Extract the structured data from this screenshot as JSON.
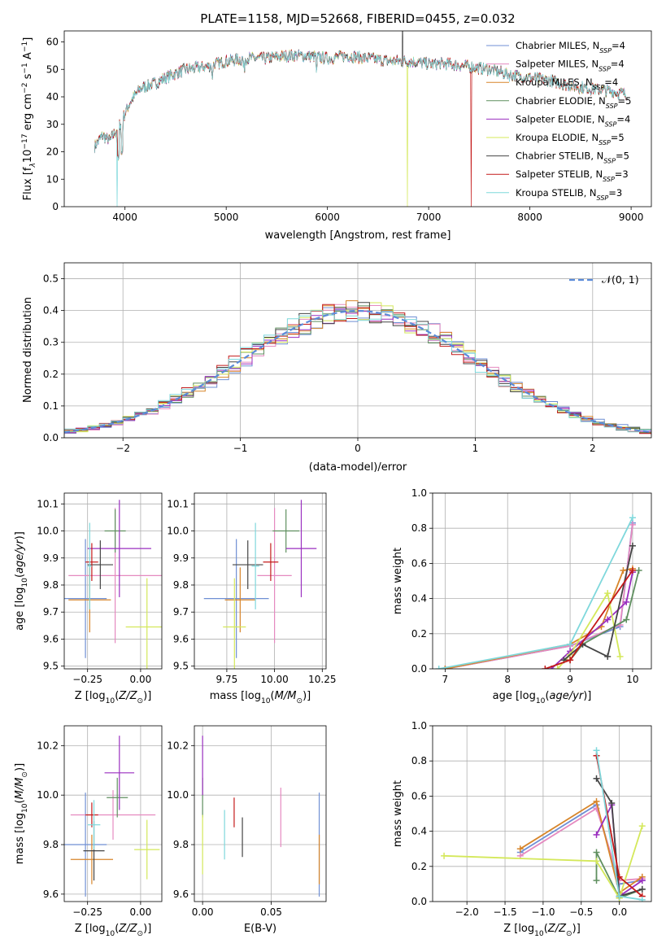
{
  "figure": {
    "title": "PLATE=1158, MJD=52668, FIBERID=0455, z=0.032",
    "legend_fit": [
      {
        "pre": "Chabrier MILES, N",
        "post": "=4",
        "color": "#6f8fd4"
      },
      {
        "pre": "Salpeter MILES, N",
        "post": "=4",
        "color": "#e58ac0"
      },
      {
        "pre": "Kroupa MILES, N",
        "post": "=4",
        "color": "#d7852a"
      },
      {
        "pre": "Chabrier ELODIE, N",
        "post": "=5",
        "color": "#5f8f5f"
      },
      {
        "pre": "Salpeter ELODIE, N",
        "post": "=4",
        "color": "#9a2fbf"
      },
      {
        "pre": "Kroupa ELODIE, N",
        "post": "=5",
        "color": "#d4e85a"
      },
      {
        "pre": "Chabrier STELIB, N",
        "post": "=5",
        "color": "#444444"
      },
      {
        "pre": "Salpeter STELIB, N",
        "post": "=3",
        "color": "#c41a1a"
      },
      {
        "pre": "Kroupa STELIB, N",
        "post": "=3",
        "color": "#7fd8dc"
      }
    ],
    "legend_sub": "SSP",
    "legend_resid": "𝒩(0, 1)"
  },
  "chart_data": [
    {
      "id": "spectrum",
      "type": "line",
      "xlabel": "wavelength [Angstrom, rest frame]",
      "ylabel_parts": [
        "Flux [f",
        "λ",
        "10",
        "−17",
        " erg cm",
        "−2",
        " s",
        "−1",
        " A",
        "−1",
        "]"
      ],
      "xlim": [
        3400,
        9200
      ],
      "ylim": [
        0,
        64
      ],
      "xticks": [
        4000,
        5000,
        6000,
        7000,
        8000,
        9000
      ],
      "yticks": [
        0,
        10,
        20,
        30,
        40,
        50,
        60
      ],
      "grid": false,
      "legend": "top-right",
      "continuum": [
        [
          3700,
          22
        ],
        [
          3780,
          26
        ],
        [
          3850,
          24
        ],
        [
          3950,
          30
        ],
        [
          4050,
          38
        ],
        [
          4150,
          43
        ],
        [
          4300,
          45
        ],
        [
          4400,
          47
        ],
        [
          4600,
          50
        ],
        [
          4800,
          51
        ],
        [
          5000,
          53
        ],
        [
          5200,
          54
        ],
        [
          5400,
          54
        ],
        [
          5600,
          55
        ],
        [
          5800,
          55
        ],
        [
          6000,
          54
        ],
        [
          6200,
          55
        ],
        [
          6400,
          54
        ],
        [
          6600,
          53
        ],
        [
          6800,
          53
        ],
        [
          7000,
          52
        ],
        [
          7200,
          52
        ],
        [
          7400,
          51
        ],
        [
          7600,
          50
        ],
        [
          7800,
          48
        ],
        [
          8000,
          47
        ],
        [
          8200,
          46
        ],
        [
          8400,
          44
        ],
        [
          8600,
          43
        ],
        [
          8800,
          42
        ],
        [
          8950,
          41
        ]
      ],
      "series_ranges": [
        [
          3700,
          8950
        ],
        [
          3700,
          8950
        ],
        [
          3700,
          8950
        ],
        [
          3700,
          8950
        ],
        [
          3700,
          8950
        ],
        [
          3700,
          8950
        ],
        [
          3700,
          8950
        ],
        [
          3700,
          8950
        ],
        [
          3700,
          8950
        ]
      ]
    },
    {
      "id": "residuals",
      "type": "histogram",
      "xlabel": "(data-model)/error",
      "ylabel": "Normed distribution",
      "xlim": [
        -2.5,
        2.5
      ],
      "ylim": [
        0,
        0.55
      ],
      "xticks": [
        -2,
        -1,
        0,
        1,
        2
      ],
      "yticks": [
        0.0,
        0.1,
        0.2,
        0.3,
        0.4,
        0.5
      ],
      "bin_width": 0.1,
      "gaussian": {
        "mean": 0,
        "sigma": 1
      }
    },
    {
      "id": "age_vs_Z",
      "type": "errorbar",
      "xlabel": "Z [log10(Z/Z⊙)]",
      "ylabel": "age  [log10(age/yr)]",
      "xlim": [
        -0.36,
        0.1
      ],
      "ylim": [
        9.49,
        10.14
      ],
      "xticks": [
        -0.25,
        0.0
      ],
      "yticks": [
        9.5,
        9.6,
        9.7,
        9.8,
        9.9,
        10.0,
        10.1
      ],
      "points": [
        {
          "x": -0.26,
          "y": 9.75,
          "xerr": 0.1,
          "yerr": 0.22
        },
        {
          "x": -0.12,
          "y": 9.835,
          "xerr": 0.22,
          "yerr": 0.25
        },
        {
          "x": -0.24,
          "y": 9.745,
          "xerr": 0.1,
          "yerr": 0.12
        },
        {
          "x": -0.12,
          "y": 10.0,
          "xerr": 0.05,
          "yerr": 0.08
        },
        {
          "x": -0.1,
          "y": 9.935,
          "xerr": 0.15,
          "yerr": 0.18
        },
        {
          "x": 0.03,
          "y": 9.645,
          "xerr": 0.1,
          "yerr": 0.18
        },
        {
          "x": -0.19,
          "y": 9.875,
          "xerr": 0.06,
          "yerr": 0.09
        },
        {
          "x": -0.23,
          "y": 9.885,
          "xerr": 0.03,
          "yerr": 0.07
        },
        {
          "x": -0.24,
          "y": 9.87,
          "xerr": 0.01,
          "yerr": 0.16
        }
      ]
    },
    {
      "id": "age_vs_mass",
      "type": "errorbar",
      "xlabel": "mass [log10(M/M⊙)]",
      "ylabel": "",
      "xlim": [
        9.58,
        10.27
      ],
      "ylim": [
        9.49,
        10.14
      ],
      "xticks": [
        9.75,
        10.0,
        10.25
      ],
      "yticks": [
        9.5,
        9.6,
        9.7,
        9.8,
        9.9,
        10.0,
        10.1
      ],
      "points": [
        {
          "x": 9.8,
          "y": 9.75,
          "xerr": 0.17,
          "yerr": 0.22
        },
        {
          "x": 10.0,
          "y": 9.835,
          "xerr": 0.09,
          "yerr": 0.25
        },
        {
          "x": 9.82,
          "y": 9.745,
          "xerr": 0.08,
          "yerr": 0.12
        },
        {
          "x": 10.06,
          "y": 10.0,
          "xerr": 0.07,
          "yerr": 0.08
        },
        {
          "x": 10.14,
          "y": 9.935,
          "xerr": 0.08,
          "yerr": 0.18
        },
        {
          "x": 9.79,
          "y": 9.645,
          "xerr": 0.06,
          "yerr": 0.18
        },
        {
          "x": 9.86,
          "y": 9.875,
          "xerr": 0.08,
          "yerr": 0.09
        },
        {
          "x": 9.98,
          "y": 9.885,
          "xerr": 0.04,
          "yerr": 0.07
        },
        {
          "x": 9.9,
          "y": 9.87,
          "xerr": 0.02,
          "yerr": 0.16
        }
      ]
    },
    {
      "id": "weight_vs_age",
      "type": "line",
      "xlabel": "age  [log10(age/yr)]",
      "ylabel": "mass weight",
      "xlim": [
        6.8,
        10.3
      ],
      "ylim": [
        0,
        1.0
      ],
      "xticks": [
        7,
        8,
        9,
        10
      ],
      "yticks": [
        0.0,
        0.2,
        0.4,
        0.6,
        0.8,
        1.0
      ],
      "grid": true,
      "series": [
        {
          "points": [
            [
              7.0,
              0.0
            ],
            [
              9.0,
              0.13
            ],
            [
              9.8,
              0.24
            ],
            [
              10.0,
              0.83
            ]
          ]
        },
        {
          "points": [
            [
              7.0,
              0.0
            ],
            [
              9.0,
              0.13
            ],
            [
              9.8,
              0.25
            ],
            [
              10.0,
              0.82
            ]
          ]
        },
        {
          "points": [
            [
              7.0,
              0.0
            ],
            [
              9.0,
              0.14
            ],
            [
              9.5,
              0.24
            ],
            [
              9.85,
              0.56
            ],
            [
              10.0,
              0.57
            ]
          ]
        },
        {
          "points": [
            [
              9.0,
              0.05
            ],
            [
              9.2,
              0.14
            ],
            [
              9.9,
              0.28
            ],
            [
              10.1,
              0.56
            ]
          ]
        },
        {
          "points": [
            [
              8.7,
              0.0
            ],
            [
              9.0,
              0.1
            ],
            [
              9.6,
              0.28
            ],
            [
              9.9,
              0.38
            ],
            [
              10.0,
              0.55
            ]
          ]
        },
        {
          "points": [
            [
              8.8,
              0.0
            ],
            [
              9.0,
              0.08
            ],
            [
              9.6,
              0.43
            ],
            [
              9.8,
              0.07
            ]
          ]
        },
        {
          "points": [
            [
              8.9,
              0.05
            ],
            [
              9.2,
              0.14
            ],
            [
              9.6,
              0.07
            ],
            [
              10.0,
              0.7
            ]
          ]
        },
        {
          "points": [
            [
              8.6,
              0.0
            ],
            [
              9.0,
              0.05
            ],
            [
              10.0,
              0.56
            ]
          ]
        },
        {
          "points": [
            [
              6.9,
              0.0
            ],
            [
              9.0,
              0.14
            ],
            [
              10.0,
              0.86
            ]
          ]
        }
      ]
    },
    {
      "id": "mass_vs_Z",
      "type": "errorbar",
      "xlabel": "Z [log10(Z/Z⊙)]",
      "ylabel": "mass [log10(M/M⊙)]",
      "xlim": [
        -0.36,
        0.1
      ],
      "ylim": [
        9.57,
        10.28
      ],
      "xticks": [
        -0.25,
        0.0
      ],
      "yticks": [
        9.6,
        9.8,
        10.0,
        10.2
      ],
      "points": [
        {
          "x": -0.26,
          "y": 9.8,
          "xerr": 0.1,
          "yerr": 0.21
        },
        {
          "x": -0.13,
          "y": 9.92,
          "xerr": 0.2,
          "yerr": 0.1
        },
        {
          "x": -0.23,
          "y": 9.74,
          "xerr": 0.1,
          "yerr": 0.1
        },
        {
          "x": -0.11,
          "y": 9.99,
          "xerr": 0.05,
          "yerr": 0.08
        },
        {
          "x": -0.1,
          "y": 10.09,
          "xerr": 0.07,
          "yerr": 0.15
        },
        {
          "x": 0.03,
          "y": 9.78,
          "xerr": 0.06,
          "yerr": 0.12
        },
        {
          "x": -0.22,
          "y": 9.775,
          "xerr": 0.05,
          "yerr": 0.12
        },
        {
          "x": -0.23,
          "y": 9.92,
          "xerr": 0.03,
          "yerr": 0.05
        },
        {
          "x": -0.22,
          "y": 9.88,
          "xerr": 0.03,
          "yerr": 0.1
        }
      ]
    },
    {
      "id": "mass_vs_EBV",
      "type": "errorbar",
      "xlabel": "E(B-V)",
      "ylabel": "",
      "xlim": [
        -0.006,
        0.09
      ],
      "ylim": [
        9.57,
        10.28
      ],
      "xticks": [
        0.0,
        0.05
      ],
      "yticks": [
        9.6,
        9.8,
        10.0,
        10.2
      ],
      "points": [
        {
          "x": 0.085,
          "y": 9.8,
          "xerr": 0,
          "yerr": 0.21
        },
        {
          "x": 0.057,
          "y": 9.91,
          "xerr": 0,
          "yerr": 0.12
        },
        {
          "x": 0.085,
          "y": 9.74,
          "xerr": 0,
          "yerr": 0.1
        },
        {
          "x": 0.0,
          "y": 9.99,
          "xerr": 0,
          "yerr": 0.08
        },
        {
          "x": 0.0,
          "y": 10.12,
          "xerr": 0,
          "yerr": 0.12
        },
        {
          "x": 0.0,
          "y": 9.8,
          "xerr": 0,
          "yerr": 0.12
        },
        {
          "x": 0.029,
          "y": 9.83,
          "xerr": 0,
          "yerr": 0.08
        },
        {
          "x": 0.023,
          "y": 9.93,
          "xerr": 0,
          "yerr": 0.06
        },
        {
          "x": 0.016,
          "y": 9.84,
          "xerr": 0,
          "yerr": 0.1
        }
      ]
    },
    {
      "id": "weight_vs_Z",
      "type": "line",
      "xlabel": "Z [log10(Z/Z⊙)]",
      "ylabel": "mass weight",
      "xlim": [
        -2.45,
        0.42
      ],
      "ylim": [
        0,
        1.0
      ],
      "xticks": [
        -2.0,
        -1.5,
        -1.0,
        -0.5,
        0.0
      ],
      "yticks": [
        0.0,
        0.2,
        0.4,
        0.6,
        0.8,
        1.0
      ],
      "grid": true,
      "series": [
        {
          "points": [
            [
              -1.3,
              0.28
            ],
            [
              -0.3,
              0.55
            ],
            [
              0.0,
              0.1
            ],
            [
              0.3,
              0.12
            ]
          ]
        },
        {
          "points": [
            [
              -1.3,
              0.26
            ],
            [
              -0.3,
              0.53
            ],
            [
              0.0,
              0.12
            ],
            [
              0.3,
              0.13
            ]
          ]
        },
        {
          "points": [
            [
              -1.3,
              0.3
            ],
            [
              -0.3,
              0.57
            ],
            [
              0.0,
              0.05
            ],
            [
              0.3,
              0.14
            ]
          ]
        },
        {
          "points": [
            [
              -0.3,
              0.12
            ],
            [
              -0.3,
              0.28
            ],
            [
              0.0,
              0.02
            ],
            [
              0.3,
              0.07
            ]
          ]
        },
        {
          "points": [
            [
              -0.3,
              0.38
            ],
            [
              -0.1,
              0.55
            ],
            [
              0.0,
              0.03
            ],
            [
              0.3,
              0.12
            ]
          ]
        },
        {
          "points": [
            [
              -2.3,
              0.26
            ],
            [
              -0.3,
              0.23
            ],
            [
              0.0,
              0.02
            ],
            [
              0.3,
              0.43
            ]
          ]
        },
        {
          "points": [
            [
              -0.3,
              0.7
            ],
            [
              -0.1,
              0.56
            ],
            [
              0.0,
              0.03
            ],
            [
              0.3,
              0.07
            ]
          ]
        },
        {
          "points": [
            [
              -0.3,
              0.83
            ],
            [
              0.0,
              0.14
            ],
            [
              0.3,
              0.03
            ]
          ]
        },
        {
          "points": [
            [
              -0.3,
              0.86
            ],
            [
              0.0,
              0.03
            ],
            [
              0.3,
              0.01
            ]
          ]
        }
      ]
    }
  ]
}
